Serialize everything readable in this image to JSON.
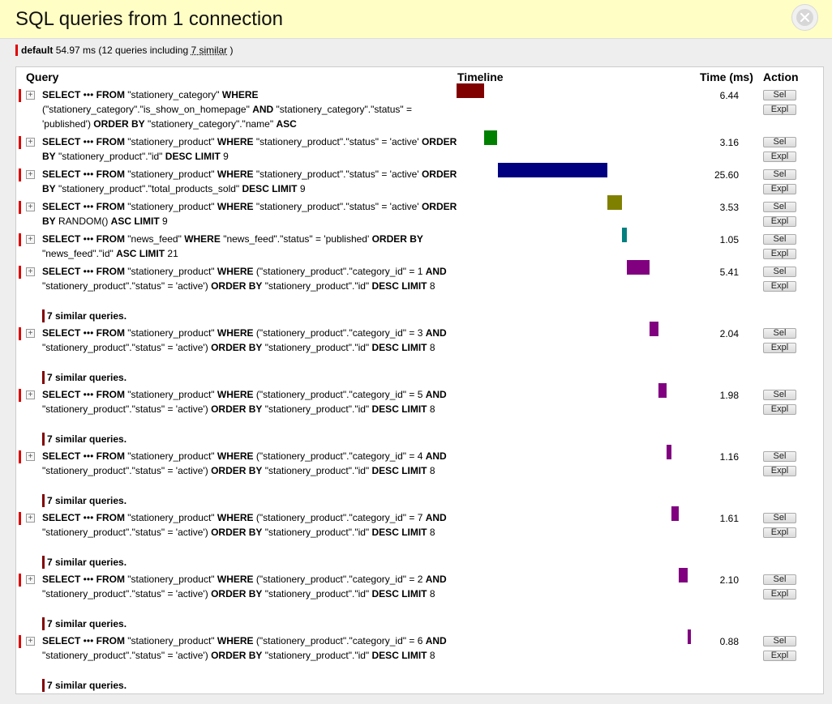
{
  "header": {
    "title": "SQL queries from 1 connection"
  },
  "connection": {
    "name": "default",
    "summary": "54.97 ms (12 queries including",
    "similar": "7 similar",
    "close_paren": ")"
  },
  "table": {
    "headers": {
      "query": "Query",
      "timeline": "Timeline",
      "time": "Time (ms)",
      "action": "Action"
    }
  },
  "buttons": {
    "sel": "Sel",
    "expl": "Expl"
  },
  "queries": [
    {
      "sql": "<b>SELECT</b> ••• <b>FROM</b> \"stationery_category\" <b>WHERE</b> (\"stationery_category\".\"is_show_on_homepage\" <b>AND</b> \"stationery_category\".\"status\" = 'published') <b>ORDER BY</b> \"stationery_category\".\"name\" <b>ASC</b>",
      "time": "6.44",
      "color": "#800000",
      "start_pct": 0.0,
      "dur_pct": 11.7,
      "similar": ""
    },
    {
      "sql": "<b>SELECT</b> ••• <b>FROM</b> \"stationery_product\" <b>WHERE</b> \"stationery_product\".\"status\" = 'active' <b>ORDER BY</b> \"stationery_product\".\"id\" <b>DESC LIMIT</b> 9",
      "time": "3.16",
      "color": "#008000",
      "start_pct": 11.7,
      "dur_pct": 5.7,
      "similar": ""
    },
    {
      "sql": "<b>SELECT</b> ••• <b>FROM</b> \"stationery_product\" <b>WHERE</b> \"stationery_product\".\"status\" = 'active' <b>ORDER BY</b> \"stationery_product\".\"total_products_sold\" <b>DESC LIMIT</b> 9",
      "time": "25.60",
      "color": "#000080",
      "start_pct": 17.5,
      "dur_pct": 46.6,
      "similar": ""
    },
    {
      "sql": "<b>SELECT</b> ••• <b>FROM</b> \"stationery_product\" <b>WHERE</b> \"stationery_product\".\"status\" = 'active' <b>ORDER BY</b> RANDOM() <b>ASC LIMIT</b> 9",
      "time": "3.53",
      "color": "#808000",
      "start_pct": 64.0,
      "dur_pct": 6.4,
      "similar": ""
    },
    {
      "sql": "<b>SELECT</b> ••• <b>FROM</b> \"news_feed\" <b>WHERE</b> \"news_feed\".\"status\" = 'published' <b>ORDER BY</b> \"news_feed\".\"id\" <b>ASC LIMIT</b> 21",
      "time": "1.05",
      "color": "#008080",
      "start_pct": 70.4,
      "dur_pct": 1.9,
      "similar": ""
    },
    {
      "sql": "<b>SELECT</b> ••• <b>FROM</b> \"stationery_product\" <b>WHERE</b> (\"stationery_product\".\"category_id\" = 1 <b>AND</b> \"stationery_product\".\"status\" = 'active') <b>ORDER BY</b> \"stationery_product\".\"id\" <b>DESC LIMIT</b> 8",
      "time": "5.41",
      "color": "#800080",
      "start_pct": 72.3,
      "dur_pct": 9.8,
      "similar": "7 similar queries."
    },
    {
      "sql": "<b>SELECT</b> ••• <b>FROM</b> \"stationery_product\" <b>WHERE</b> (\"stationery_product\".\"category_id\" = 3 <b>AND</b> \"stationery_product\".\"status\" = 'active') <b>ORDER BY</b> \"stationery_product\".\"id\" <b>DESC LIMIT</b> 8",
      "time": "2.04",
      "color": "#800080",
      "start_pct": 82.1,
      "dur_pct": 3.7,
      "similar": "7 similar queries."
    },
    {
      "sql": "<b>SELECT</b> ••• <b>FROM</b> \"stationery_product\" <b>WHERE</b> (\"stationery_product\".\"category_id\" = 5 <b>AND</b> \"stationery_product\".\"status\" = 'active') <b>ORDER BY</b> \"stationery_product\".\"id\" <b>DESC LIMIT</b> 8",
      "time": "1.98",
      "color": "#800080",
      "start_pct": 85.8,
      "dur_pct": 3.6,
      "similar": "7 similar queries."
    },
    {
      "sql": "<b>SELECT</b> ••• <b>FROM</b> \"stationery_product\" <b>WHERE</b> (\"stationery_product\".\"category_id\" = 4 <b>AND</b> \"stationery_product\".\"status\" = 'active') <b>ORDER BY</b> \"stationery_product\".\"id\" <b>DESC LIMIT</b> 8",
      "time": "1.16",
      "color": "#800080",
      "start_pct": 89.4,
      "dur_pct": 2.1,
      "similar": "7 similar queries."
    },
    {
      "sql": "<b>SELECT</b> ••• <b>FROM</b> \"stationery_product\" <b>WHERE</b> (\"stationery_product\".\"category_id\" = 7 <b>AND</b> \"stationery_product\".\"status\" = 'active') <b>ORDER BY</b> \"stationery_product\".\"id\" <b>DESC LIMIT</b> 8",
      "time": "1.61",
      "color": "#800080",
      "start_pct": 91.5,
      "dur_pct": 2.9,
      "similar": "7 similar queries."
    },
    {
      "sql": "<b>SELECT</b> ••• <b>FROM</b> \"stationery_product\" <b>WHERE</b> (\"stationery_product\".\"category_id\" = 2 <b>AND</b> \"stationery_product\".\"status\" = 'active') <b>ORDER BY</b> \"stationery_product\".\"id\" <b>DESC LIMIT</b> 8",
      "time": "2.10",
      "color": "#800080",
      "start_pct": 94.4,
      "dur_pct": 3.8,
      "similar": "7 similar queries."
    },
    {
      "sql": "<b>SELECT</b> ••• <b>FROM</b> \"stationery_product\" <b>WHERE</b> (\"stationery_product\".\"category_id\" = 6 <b>AND</b> \"stationery_product\".\"status\" = 'active') <b>ORDER BY</b> \"stationery_product\".\"id\" <b>DESC LIMIT</b> 8",
      "time": "0.88",
      "color": "#800080",
      "start_pct": 98.2,
      "dur_pct": 1.6,
      "similar": "7 similar queries."
    }
  ]
}
